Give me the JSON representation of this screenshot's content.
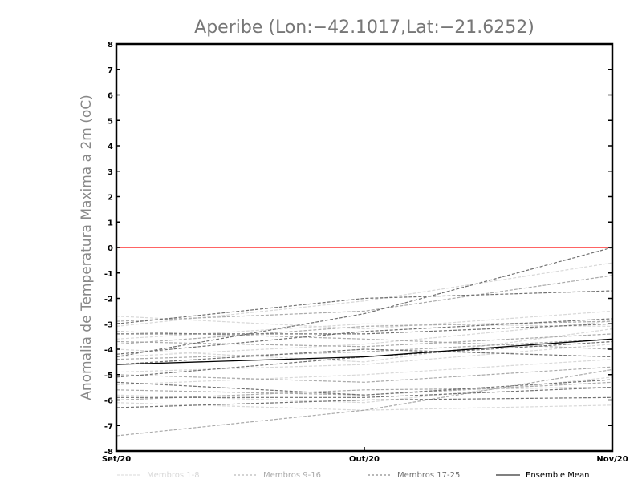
{
  "chart_data": {
    "type": "line",
    "title": "Aperibe (Lon:−42.1017,Lat:−21.6252)",
    "xlabel": "",
    "ylabel": "Anomalia de Temperatura Maxima a 2m (oC)",
    "categories": [
      "Set/20",
      "Out/20",
      "Nov/20"
    ],
    "ylim": [
      -8,
      8
    ],
    "yticks": [
      8,
      7,
      6,
      5,
      4,
      3,
      2,
      1,
      0,
      -1,
      -2,
      -3,
      -4,
      -5,
      -6,
      -7,
      -8
    ],
    "ytick_labels": [
      "8",
      "7",
      "6",
      "5",
      "4",
      "3",
      "2",
      "1",
      "0",
      "-1",
      "-2",
      "-3",
      "-4",
      "-5",
      "-6",
      "-7",
      "-8"
    ],
    "reference_line": {
      "y": 0,
      "color": "#ff3030"
    },
    "legend": [
      {
        "label": "Membros 1-8",
        "color": "#d8d8d8",
        "style": "dashed"
      },
      {
        "label": "Membros 9-16",
        "color": "#aaaaaa",
        "style": "dashed"
      },
      {
        "label": "Membros 17-25",
        "color": "#707070",
        "style": "dashed"
      },
      {
        "label": "Ensemble Mean",
        "color": "#000000",
        "style": "solid"
      }
    ],
    "series": [
      {
        "group": 0,
        "values": [
          -2.7,
          -3.2,
          -2.5
        ]
      },
      {
        "group": 0,
        "values": [
          -3.1,
          -2.1,
          -0.6
        ]
      },
      {
        "group": 0,
        "values": [
          -3.6,
          -3.0,
          -3.1
        ]
      },
      {
        "group": 0,
        "values": [
          -4.3,
          -3.8,
          -2.9
        ]
      },
      {
        "group": 0,
        "values": [
          -4.9,
          -4.6,
          -3.8
        ]
      },
      {
        "group": 0,
        "values": [
          -5.4,
          -5.0,
          -4.4
        ]
      },
      {
        "group": 0,
        "values": [
          -5.8,
          -6.1,
          -5.1
        ]
      },
      {
        "group": 0,
        "values": [
          -6.1,
          -6.4,
          -6.2
        ]
      },
      {
        "group": 1,
        "values": [
          -2.9,
          -2.5,
          -1.1
        ]
      },
      {
        "group": 1,
        "values": [
          -3.3,
          -3.6,
          -4.0
        ]
      },
      {
        "group": 1,
        "values": [
          -3.8,
          -3.1,
          -2.9
        ]
      },
      {
        "group": 1,
        "values": [
          -4.4,
          -4.1,
          -3.6
        ]
      },
      {
        "group": 1,
        "values": [
          -5.0,
          -5.3,
          -4.7
        ]
      },
      {
        "group": 1,
        "values": [
          -5.6,
          -5.8,
          -5.3
        ]
      },
      {
        "group": 1,
        "values": [
          -6.0,
          -5.6,
          -5.5
        ]
      },
      {
        "group": 1,
        "values": [
          -7.4,
          -6.4,
          -4.8
        ]
      },
      {
        "group": 0,
        "values": [
          -4.0,
          -4.5,
          -3.2
        ]
      },
      {
        "group": 2,
        "values": [
          -3.0,
          -2.0,
          -1.7
        ]
      },
      {
        "group": 2,
        "values": [
          -3.4,
          -3.4,
          -3.0
        ]
      },
      {
        "group": 2,
        "values": [
          -4.2,
          -3.3,
          -2.8
        ]
      },
      {
        "group": 2,
        "values": [
          -4.3,
          -2.6,
          0.0
        ]
      },
      {
        "group": 2,
        "values": [
          -4.6,
          -4.0,
          -4.3
        ]
      },
      {
        "group": 2,
        "values": [
          -5.1,
          -4.3,
          -3.7
        ]
      },
      {
        "group": 2,
        "values": [
          -5.3,
          -5.8,
          -5.2
        ]
      },
      {
        "group": 2,
        "values": [
          -5.9,
          -5.9,
          -5.5
        ]
      },
      {
        "group": 2,
        "values": [
          -6.3,
          -6.0,
          -5.9
        ]
      },
      {
        "group": 1,
        "values": [
          -3.7,
          -3.9,
          -3.4
        ]
      }
    ],
    "ensemble_mean": [
      -4.6,
      -4.3,
      -3.6
    ]
  }
}
